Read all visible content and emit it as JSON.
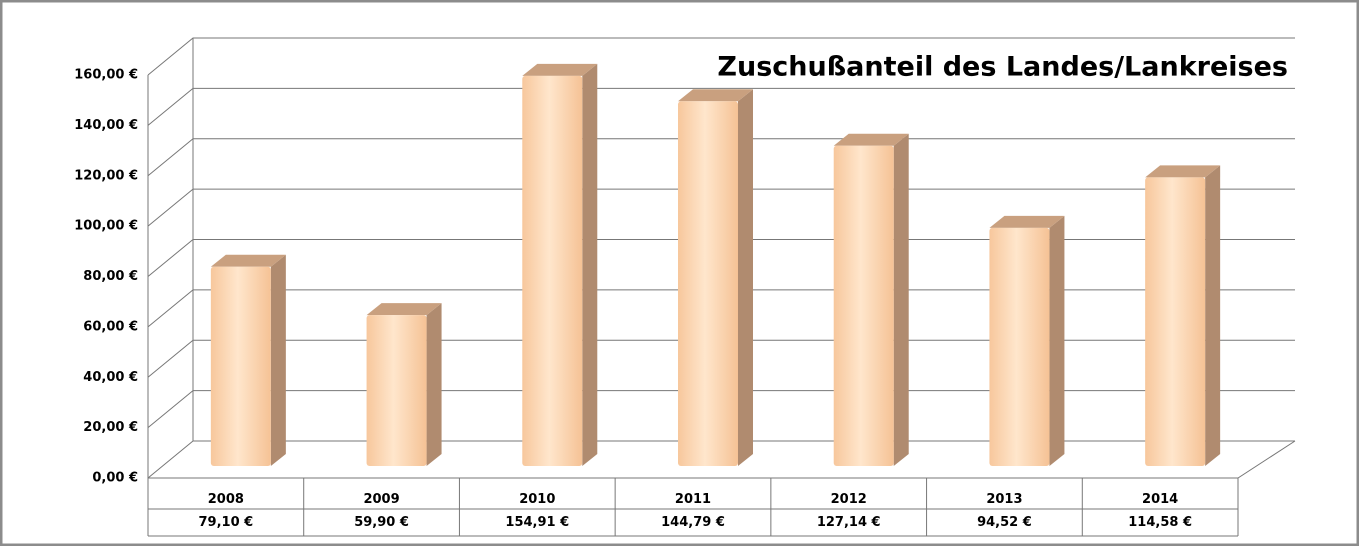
{
  "chart_data": {
    "type": "bar3d",
    "title": "Zuschußanteil des Landes/Lankreises",
    "categories": [
      "2008",
      "2009",
      "2010",
      "2011",
      "2012",
      "2013",
      "2014"
    ],
    "values": [
      79.1,
      59.9,
      154.91,
      144.79,
      127.14,
      94.52,
      114.58
    ],
    "value_labels": [
      "79,10 €",
      "59,90 €",
      "154,91 €",
      "144,79 €",
      "127,14 €",
      "94,52 €",
      "114,58 €"
    ],
    "color": "#fdd3ad",
    "ylim": [
      0,
      160
    ],
    "yticks": [
      {
        "value": 0,
        "label": "0,00 €"
      },
      {
        "value": 20,
        "label": "20,00 €"
      },
      {
        "value": 40,
        "label": "40,00 €"
      },
      {
        "value": 60,
        "label": "60,00 €"
      },
      {
        "value": 80,
        "label": "80,00 €"
      },
      {
        "value": 100,
        "label": "100,00 €"
      },
      {
        "value": 120,
        "label": "120,00 €"
      },
      {
        "value": 140,
        "label": "140,00 €"
      },
      {
        "value": 160,
        "label": "160,00 €"
      }
    ],
    "grid": true
  }
}
